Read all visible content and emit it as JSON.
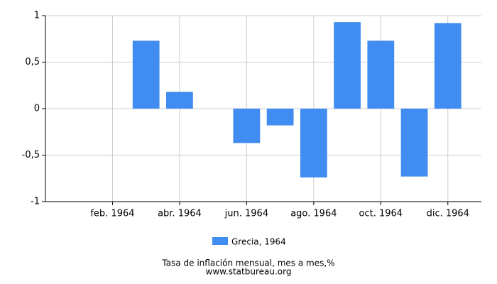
{
  "chart_data": {
    "type": "bar",
    "categories": [
      null,
      "feb. 1964",
      null,
      "abr. 1964",
      null,
      "jun. 1964",
      null,
      "ago. 1964",
      null,
      "oct. 1964",
      null,
      "dic. 1964"
    ],
    "series": [
      {
        "name": "Grecia, 1964",
        "color": "#418cf0",
        "values": [
          0,
          0,
          0.73,
          0.18,
          0,
          -0.37,
          -0.18,
          -0.74,
          0.93,
          0.73,
          -0.73,
          0.92
        ]
      }
    ],
    "ylim": [
      -1,
      1
    ],
    "yticks": [
      -1,
      {
        "value": -0.5,
        "label": "-0,5"
      },
      0,
      {
        "value": 0.5,
        "label": "0,5"
      },
      1
    ],
    "grid": true,
    "legend": "bottom",
    "caption": "Tasa de inflación mensual, mes a mes,%",
    "source": "www.statbureau.org"
  }
}
